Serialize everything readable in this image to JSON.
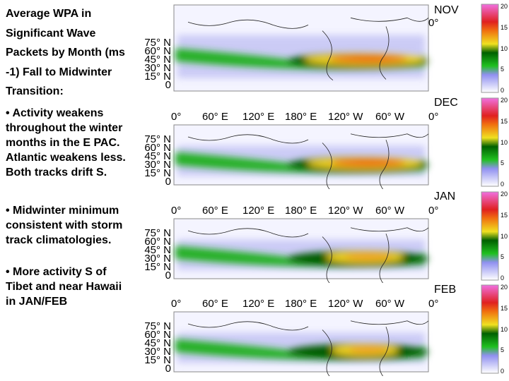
{
  "intro": {
    "line1": "Average WPA in",
    "line2": "Significant Wave",
    "line3": "Packets by Month (ms",
    "line4": "-1) Fall to Midwinter",
    "line5": "Transition:"
  },
  "bullets": [
    {
      "lines": [
        "• Activity weakens",
        "throughout the winter",
        "months in the E PAC.",
        "Atlantic weakens less.",
        "Both tracks drift S."
      ]
    },
    {
      "lines": [
        "• Midwinter minimum",
        "consistent with storm",
        "track climatologies."
      ]
    },
    {
      "lines": [
        "• More activity S of",
        "Tibet and near Hawaii",
        "in JAN/FEB"
      ]
    }
  ],
  "panels": [
    {
      "month": "NOV"
    },
    {
      "month": "DEC"
    },
    {
      "month": "JAN"
    },
    {
      "month": "FEB"
    }
  ],
  "lon_labels": [
    "0°",
    "60° E",
    "120° E",
    "180° E",
    "120° W",
    "60° W",
    "0°"
  ],
  "lat_labels": [
    "75° N",
    "60° N",
    "45° N",
    "30° N",
    "15° N",
    "0"
  ],
  "colorbar_labels": [
    "20",
    "15",
    "10",
    "5",
    "0"
  ],
  "colors": {
    "purple": "#8c8cf0",
    "green": "#20b020",
    "darkgreen": "#006000",
    "yellow": "#f0e020",
    "orange": "#f08020",
    "red": "#e02020",
    "pink": "#f070e0"
  }
}
